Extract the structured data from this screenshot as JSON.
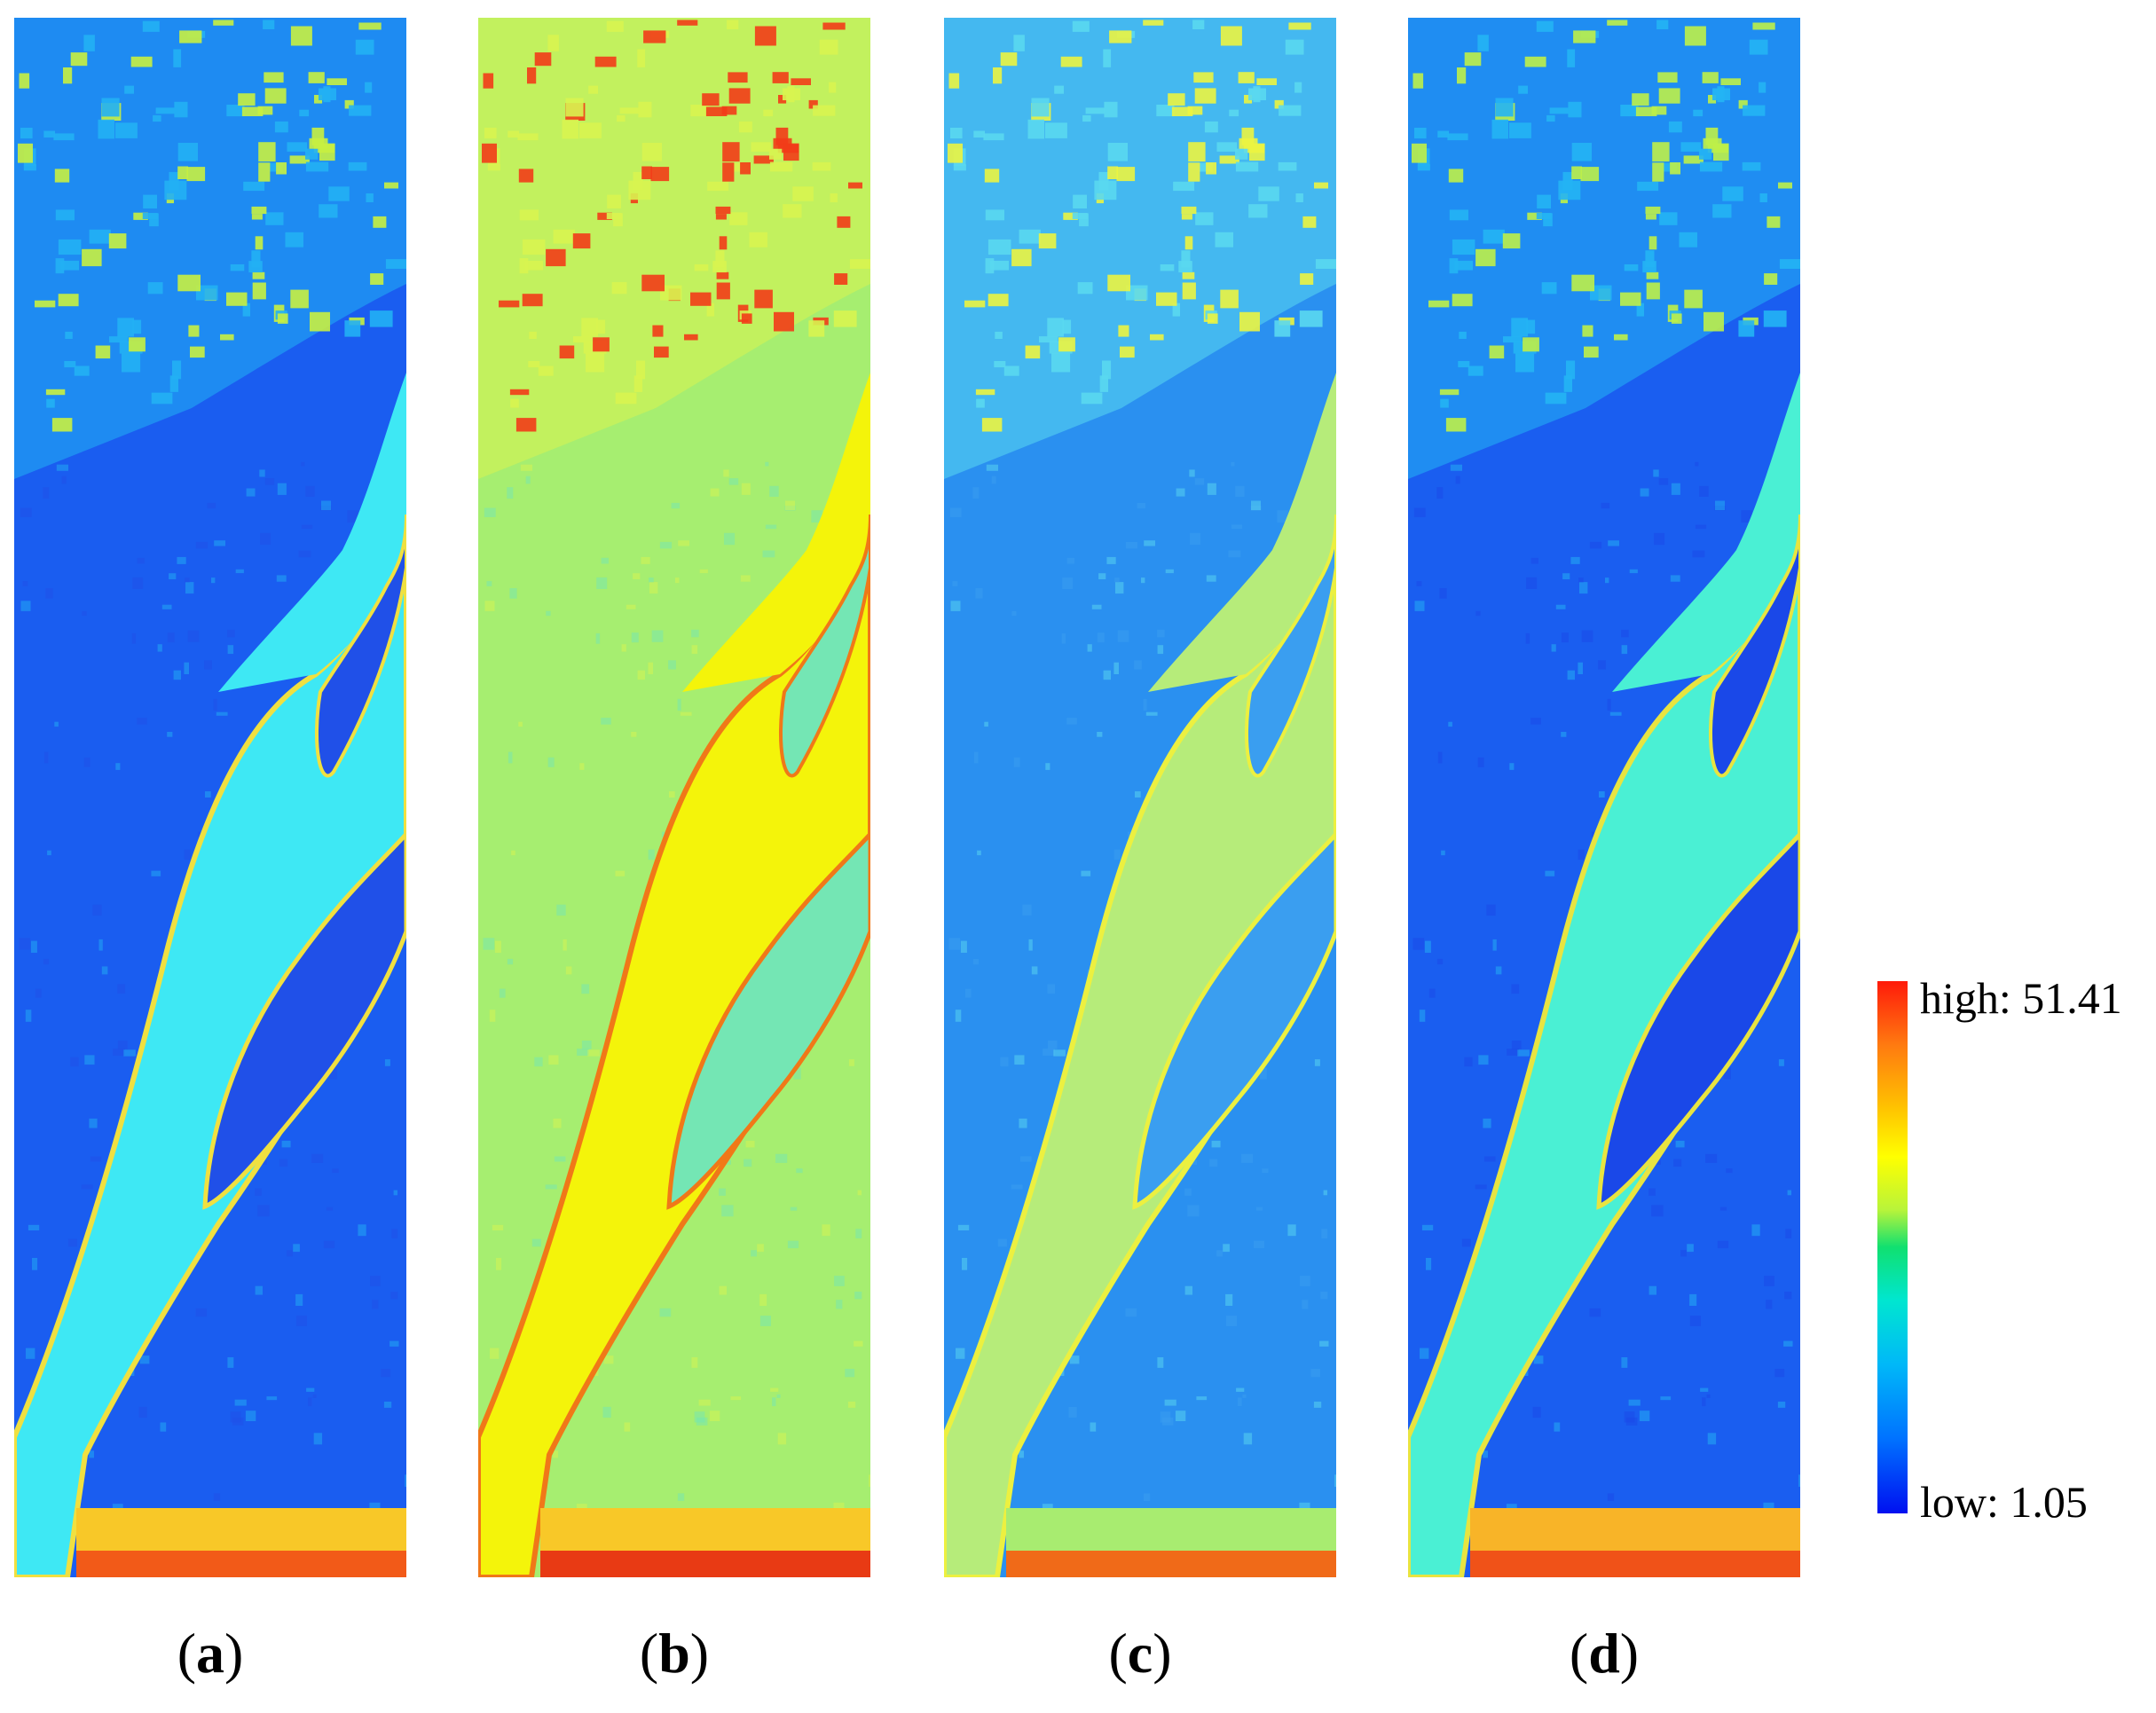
{
  "panels": [
    {
      "id": "a",
      "caption_open": "(",
      "caption_letter": "a",
      "caption_close": ")"
    },
    {
      "id": "b",
      "caption_open": "(",
      "caption_letter": "b",
      "caption_close": ")"
    },
    {
      "id": "c",
      "caption_open": "(",
      "caption_letter": "c",
      "caption_close": ")"
    },
    {
      "id": "d",
      "caption_open": "(",
      "caption_letter": "d",
      "caption_close": ")"
    }
  ],
  "colorbar": {
    "high_label": "high: 51.41",
    "low_label": "low: 1.05",
    "colormap": "jet",
    "colors_top_to_bottom": [
      "#ff1a0a",
      "#ff7a10",
      "#ffc400",
      "#ffff00",
      "#b8f43a",
      "#10e070",
      "#00e6d0",
      "#00b8f8",
      "#0072ff",
      "#0010f0"
    ]
  },
  "palettes": {
    "a": {
      "bg": "#1a5df0",
      "urban": "#22b0f4",
      "urban_hot": "#c8f040",
      "river": "#3ee8f4",
      "island": "#2050e8",
      "bank": "#f0e040",
      "bottom": "#f8c828",
      "bottom_hot": "#f25a18"
    },
    "b": {
      "bg": "#a6ee70",
      "urban": "#d8f450",
      "urban_hot": "#f23c18",
      "river": "#f4f40a",
      "island": "#74e6b4",
      "bank": "#f07818",
      "bottom": "#f8c828",
      "bottom_hot": "#e83a14"
    },
    "c": {
      "bg": "#2a90f0",
      "urban": "#5ad8f0",
      "urban_hot": "#ecf440",
      "river": "#b6ec7a",
      "island": "#3a9ef0",
      "bank": "#ecf040",
      "bottom": "#a8ec70",
      "bottom_hot": "#f06a18"
    },
    "d": {
      "bg": "#1a5ef0",
      "urban": "#24b4f4",
      "urban_hot": "#bef048",
      "river": "#4af0d4",
      "island": "#1a48e8",
      "bank": "#e8e440",
      "bottom": "#f8b428",
      "bottom_hot": "#f05218"
    }
  }
}
